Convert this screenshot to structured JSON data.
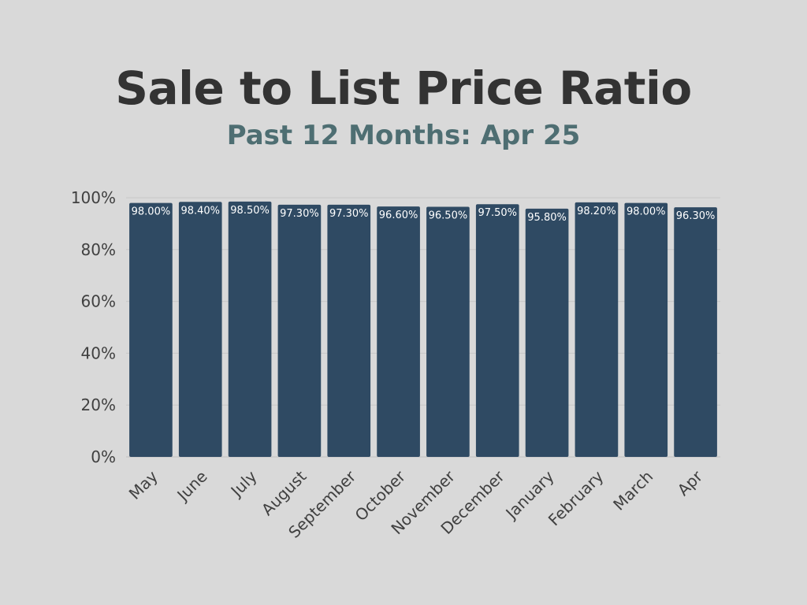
{
  "title": "Sale to List Price Ratio",
  "subtitle": "Past 12 Months: Apr 25",
  "colors": {
    "background": "#d9d9d9",
    "bar": "#2f4a63",
    "title": "#333333",
    "subtitle": "#4e6e72",
    "grid": "#c8c8c8"
  },
  "chart_data": {
    "type": "bar",
    "title": "Sale to List Price Ratio",
    "subtitle": "Past 12 Months: Apr 25",
    "categories": [
      "May",
      "June",
      "July",
      "August",
      "September",
      "October",
      "November",
      "December",
      "January",
      "February",
      "March",
      "Apr"
    ],
    "values": [
      98.0,
      98.4,
      98.5,
      97.3,
      97.3,
      96.6,
      96.5,
      97.5,
      95.8,
      98.2,
      98.0,
      96.3
    ],
    "data_labels": [
      "98.00%",
      "98.40%",
      "98.50%",
      "97.30%",
      "97.30%",
      "96.60%",
      "96.50%",
      "97.50%",
      "95.80%",
      "98.20%",
      "98.00%",
      "96.30%"
    ],
    "y_ticks": [
      0,
      20,
      40,
      60,
      80,
      100
    ],
    "y_tick_labels": [
      "0%",
      "20%",
      "40%",
      "60%",
      "80%",
      "100%"
    ],
    "ylim": [
      0,
      100
    ],
    "xlabel": "",
    "ylabel": "",
    "grid": true,
    "legend": "none"
  }
}
